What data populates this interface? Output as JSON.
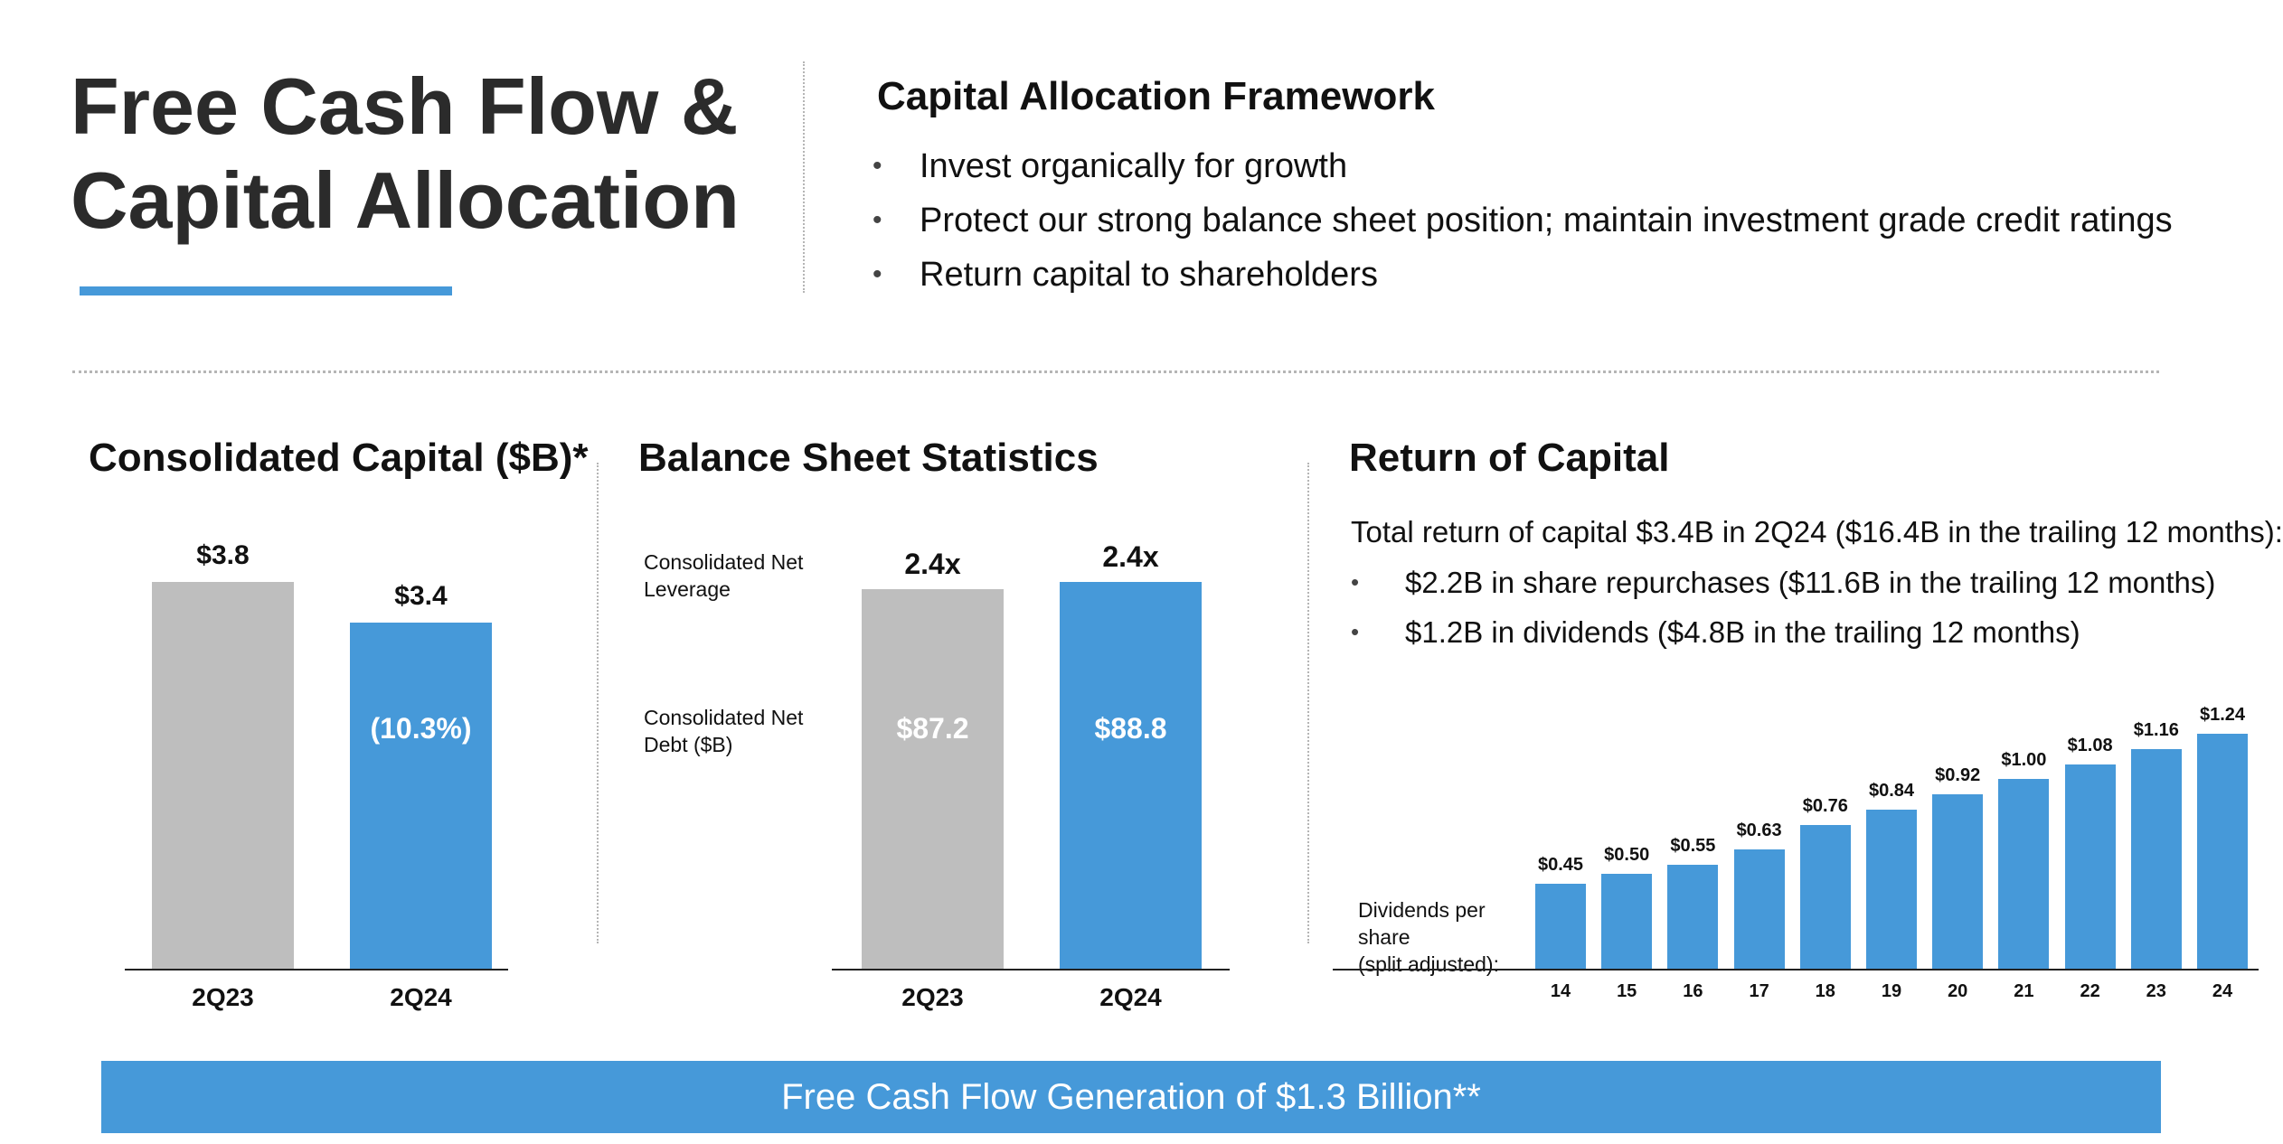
{
  "header": {
    "title_line1": "Free Cash Flow &",
    "title_line2": "Capital Allocation",
    "accent_color": "#4699d9"
  },
  "framework": {
    "heading": "Capital Allocation Framework",
    "bullets": [
      "Invest organically for growth",
      "Protect our strong balance sheet position; maintain investment grade credit ratings",
      "Return capital to shareholders"
    ]
  },
  "consolidated_capital": {
    "title": "Consolidated Capital ($B)*"
  },
  "balance_sheet": {
    "title": "Balance Sheet Statistics",
    "row_labels": [
      "Consolidated Net Leverage",
      "Consolidated Net Debt ($B)"
    ]
  },
  "return_of_capital": {
    "title": "Return of Capital",
    "summary": "Total return of capital $3.4B in 2Q24 ($16.4B in the trailing 12 months):",
    "bullets": [
      "$2.2B in share repurchases ($11.6B in the trailing 12 months)",
      "$1.2B in dividends ($4.8B in the trailing 12 months)"
    ],
    "dividends_label_line1": "Dividends per share",
    "dividends_label_line2": "(split adjusted):"
  },
  "footer": {
    "banner": "Free Cash Flow Generation of $1.3 Billion**"
  },
  "chart_data": [
    {
      "id": "consolidated_capital",
      "type": "bar",
      "title": "Consolidated Capital ($B)*",
      "categories": [
        "2Q23",
        "2Q24"
      ],
      "values": [
        3.8,
        3.4
      ],
      "value_labels": [
        "$3.8",
        "$3.4"
      ],
      "inner_labels": [
        "",
        "(10.3%)"
      ],
      "colors": [
        "#bebebe",
        "#4699d9"
      ],
      "ylim": [
        0,
        3.8
      ]
    },
    {
      "id": "balance_sheet",
      "type": "bar",
      "title": "Balance Sheet Statistics",
      "categories": [
        "2Q23",
        "2Q24"
      ],
      "values": [
        87.2,
        88.8
      ],
      "value_labels": [
        "2.4x",
        "2.4x"
      ],
      "inner_labels": [
        "$87.2",
        "$88.8"
      ],
      "leverage": [
        2.4,
        2.4
      ],
      "colors": [
        "#bebebe",
        "#4699d9"
      ],
      "ylim": [
        0,
        88.8
      ]
    },
    {
      "id": "dividends",
      "type": "bar",
      "title": "Dividends per share (split adjusted):",
      "categories": [
        "14",
        "15",
        "16",
        "17",
        "18",
        "19",
        "20",
        "21",
        "22",
        "23",
        "24"
      ],
      "values": [
        0.45,
        0.5,
        0.55,
        0.63,
        0.76,
        0.84,
        0.92,
        1.0,
        1.08,
        1.16,
        1.24
      ],
      "value_labels": [
        "$0.45",
        "$0.50",
        "$0.55",
        "$0.63",
        "$0.76",
        "$0.84",
        "$0.92",
        "$1.00",
        "$1.08",
        "$1.16",
        "$1.24"
      ],
      "colors": [
        "#4699d9"
      ],
      "ylim": [
        0,
        1.24
      ]
    }
  ]
}
